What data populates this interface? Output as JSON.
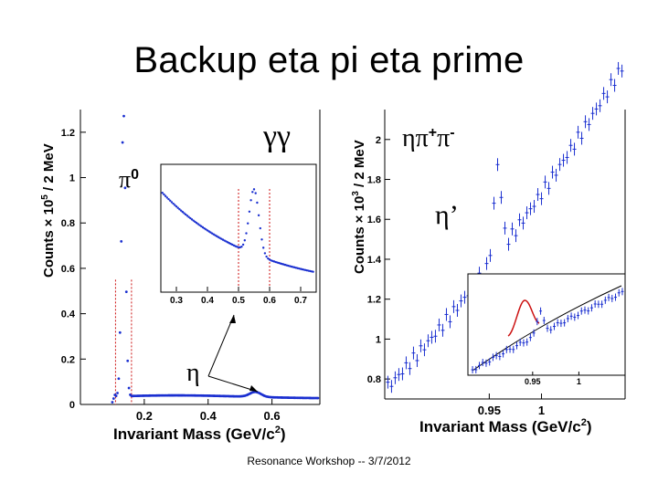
{
  "slide": {
    "title": "Backup eta pi eta prime",
    "footer": "Resonance Workshop -- 3/7/2012"
  },
  "colors": {
    "data": "#1a2fd0",
    "fit_gauss": "#cc1111",
    "fit_bg": "#000000",
    "cut": "#cc1111"
  },
  "chart_data": [
    {
      "type": "scatter",
      "title": "γγ",
      "xlabel": "Invariant Mass (GeV/c²)",
      "ylabel": "Counts × 10⁵ / 2 MeV",
      "xlim": [
        0.0,
        0.75
      ],
      "ylim": [
        0.0,
        1.3
      ],
      "xticks": [
        "0.2",
        "0.4",
        "0.6"
      ],
      "yticks": [
        "0",
        "0.2",
        "0.4",
        "0.6",
        "0.8",
        "1",
        "1.2"
      ],
      "annotations": {
        "peak1": "π⁰",
        "peak2": "η"
      },
      "cut_lines": [
        0.11,
        0.16
      ],
      "inset": {
        "xticks": [
          "0.3",
          "0.4",
          "0.5",
          "0.6",
          "0.7"
        ],
        "xlim": [
          0.25,
          0.75
        ],
        "cut_lines": [
          0.5,
          0.6
        ]
      }
    },
    {
      "type": "scatter",
      "title": "ηπ⁺π⁻",
      "xlabel": "Invariant Mass (GeV/c²)",
      "ylabel": "Counts × 10³ / 2 MeV",
      "xlim": [
        0.85,
        1.08
      ],
      "ylim": [
        0.7,
        2.15
      ],
      "xticks": [
        "0.95",
        "1"
      ],
      "yticks": [
        "0.8",
        "1",
        "1.2",
        "1.4",
        "1.6",
        "1.8",
        "2"
      ],
      "annotations": {
        "peak": "η’"
      },
      "inset": {
        "xticks": [
          "0.95",
          "1"
        ],
        "xlim": [
          0.88,
          1.05
        ]
      }
    }
  ],
  "text": {
    "left_ylabel_a": "Counts",
    "left_ylabel_b": "× 10",
    "left_ylabel_exp": "5",
    "left_ylabel_c": " / 2 MeV",
    "right_ylabel_exp": "3",
    "left_title": "γγ",
    "right_title_a": "ηπ",
    "right_title_sup1": "+",
    "right_title_b": "π",
    "right_title_sup2": "-",
    "pi0_a": "π",
    "pi0_b": "0",
    "eta": "η",
    "etaprime": "η’",
    "xlabel_main": "Invariant Mass (GeV/c",
    "xlabel_exp": "2",
    "xlabel_close": ")"
  }
}
